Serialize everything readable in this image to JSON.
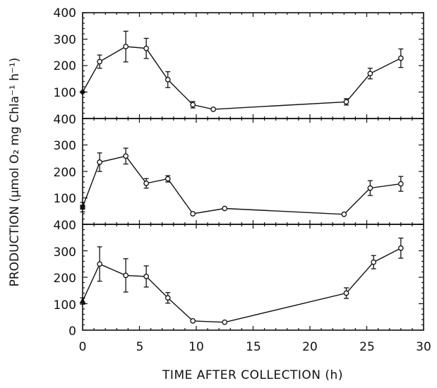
{
  "chart_data": [
    {
      "type": "line",
      "panel": "top",
      "x": [
        0,
        1.5,
        3.8,
        5.6,
        7.5,
        9.7,
        11.5,
        23.2,
        25.3,
        28.0
      ],
      "series": [
        {
          "values": [
            100,
            215,
            272,
            265,
            147,
            52,
            35,
            63,
            170,
            228
          ],
          "errors": [
            0,
            25,
            58,
            38,
            30,
            12,
            0,
            12,
            20,
            35
          ]
        }
      ],
      "xlim": [
        0,
        30
      ],
      "ylim": [
        0,
        400
      ]
    },
    {
      "type": "line",
      "panel": "middle",
      "x": [
        0,
        1.5,
        3.8,
        5.6,
        7.5,
        9.7,
        12.5,
        23.0,
        25.3,
        28.0
      ],
      "series": [
        {
          "values": [
            65,
            235,
            258,
            155,
            172,
            40,
            60,
            38,
            137,
            153
          ],
          "errors": [
            18,
            35,
            30,
            18,
            12,
            0,
            0,
            0,
            28,
            28
          ]
        }
      ],
      "xlim": [
        0,
        30
      ],
      "ylim": [
        0,
        400
      ]
    },
    {
      "type": "line",
      "panel": "bottom",
      "x": [
        0,
        1.5,
        3.8,
        5.6,
        7.5,
        9.7,
        12.5,
        23.2,
        25.6,
        28.0
      ],
      "series": [
        {
          "values": [
            110,
            250,
            207,
            203,
            122,
            35,
            30,
            140,
            257,
            310
          ],
          "errors": [
            12,
            65,
            63,
            40,
            20,
            0,
            0,
            20,
            25,
            38
          ]
        }
      ],
      "xlim": [
        0,
        30
      ],
      "ylim": [
        0,
        400
      ]
    }
  ],
  "axes": {
    "ylabel": "PRODUCTION (μmol O₂ mg Chla⁻¹ h⁻¹)",
    "xlabel": "TIME AFTER COLLECTION (h)",
    "x_ticks": [
      "0",
      "5",
      "10",
      "15",
      "20",
      "25",
      "30"
    ],
    "y_ticks_top": [
      "400",
      "300",
      "200",
      "100"
    ],
    "y_ticks_middle": [
      "400",
      "300",
      "200",
      "100"
    ],
    "y_ticks_bottom": [
      "400",
      "300",
      "200",
      "100",
      "0"
    ]
  },
  "colors": {
    "ink": "#111111",
    "background": "#ffffff",
    "marker_fill": "#ffffff"
  }
}
